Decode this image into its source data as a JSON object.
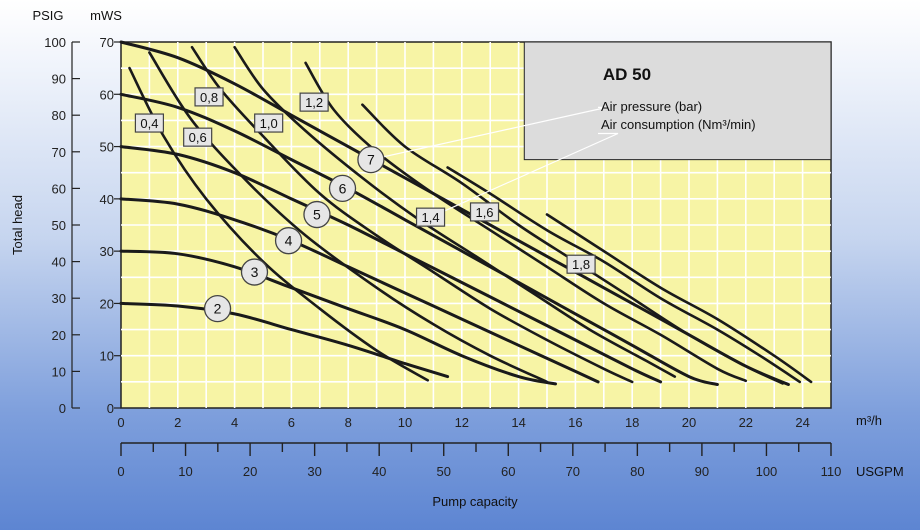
{
  "chart_data": {
    "type": "line",
    "title": "AD 50",
    "legend_lines": [
      "Air pressure (bar)",
      "Air consumption (Nm³/min)"
    ],
    "ylabel": "Total head",
    "xlabel": "Pump capacity",
    "y_unit_psig": "PSIG",
    "y_unit_mws": "mWS",
    "x_unit_m3h": "m³/h",
    "x_unit_usgpm": "USGPM",
    "xlim": [
      0,
      25
    ],
    "ylim": [
      0,
      70
    ],
    "psig_range": [
      0,
      100
    ],
    "usgpm_range": [
      0,
      110
    ],
    "grid": true,
    "xticks_m3h": [
      "0",
      "2",
      "4",
      "6",
      "8",
      "10",
      "12",
      "14",
      "16",
      "18",
      "20",
      "22",
      "24"
    ],
    "xticks_usgpm": [
      "0",
      "10",
      "20",
      "30",
      "40",
      "50",
      "60",
      "70",
      "80",
      "90",
      "100",
      "110"
    ],
    "yticks_mws": [
      "0",
      "10",
      "20",
      "30",
      "40",
      "50",
      "60",
      "70"
    ],
    "yticks_psig": [
      "0",
      "10",
      "20",
      "30",
      "40",
      "50",
      "60",
      "70",
      "80",
      "90",
      "100"
    ],
    "pressure_series": [
      {
        "name": "2",
        "points": [
          [
            0,
            20
          ],
          [
            2,
            19.5
          ],
          [
            4,
            18
          ],
          [
            6,
            15
          ],
          [
            8,
            12
          ],
          [
            10,
            8.5
          ],
          [
            11.5,
            6
          ]
        ]
      },
      {
        "name": "3",
        "points": [
          [
            0,
            30
          ],
          [
            2,
            29.5
          ],
          [
            4,
            27
          ],
          [
            6,
            23
          ],
          [
            8,
            19
          ],
          [
            10,
            15
          ],
          [
            12,
            10
          ],
          [
            14,
            6
          ],
          [
            15.3,
            4.6
          ]
        ]
      },
      {
        "name": "4",
        "points": [
          [
            0,
            40
          ],
          [
            2,
            39
          ],
          [
            4,
            36
          ],
          [
            6,
            32
          ],
          [
            8,
            27
          ],
          [
            10,
            22
          ],
          [
            12,
            17
          ],
          [
            14,
            12
          ],
          [
            16,
            7
          ],
          [
            16.8,
            5
          ]
        ]
      },
      {
        "name": "5",
        "points": [
          [
            0,
            50
          ],
          [
            2,
            48.5
          ],
          [
            4,
            45
          ],
          [
            6,
            40
          ],
          [
            8,
            35
          ],
          [
            10,
            29.5
          ],
          [
            12,
            24
          ],
          [
            14,
            18.5
          ],
          [
            16,
            13
          ],
          [
            18,
            7.5
          ],
          [
            19,
            5
          ]
        ]
      },
      {
        "name": "6",
        "points": [
          [
            0,
            60
          ],
          [
            2,
            57.5
          ],
          [
            4,
            53
          ],
          [
            6,
            47.5
          ],
          [
            8,
            42
          ],
          [
            10,
            36
          ],
          [
            12,
            30
          ],
          [
            14,
            24
          ],
          [
            16,
            18
          ],
          [
            18,
            12
          ],
          [
            20,
            6
          ],
          [
            21,
            4.5
          ]
        ]
      },
      {
        "name": "7",
        "points": [
          [
            0,
            70
          ],
          [
            2,
            67
          ],
          [
            4,
            62
          ],
          [
            6,
            56
          ],
          [
            8,
            50
          ],
          [
            10,
            44
          ],
          [
            12,
            38
          ],
          [
            14,
            32
          ],
          [
            16,
            26
          ],
          [
            18,
            20
          ],
          [
            20,
            14
          ],
          [
            22,
            8
          ],
          [
            23.5,
            4.5
          ]
        ]
      }
    ],
    "air_series": [
      {
        "name": "0,4",
        "points": [
          [
            0.3,
            65
          ],
          [
            1.5,
            52
          ],
          [
            3,
            40
          ],
          [
            5,
            28
          ],
          [
            7,
            19
          ],
          [
            9,
            11
          ],
          [
            10.8,
            5.3
          ]
        ]
      },
      {
        "name": "0,6",
        "points": [
          [
            1,
            68
          ],
          [
            2.5,
            55
          ],
          [
            4.5,
            43
          ],
          [
            6.5,
            33
          ],
          [
            9,
            23
          ],
          [
            11,
            16
          ],
          [
            13,
            10
          ],
          [
            15,
            5
          ]
        ]
      },
      {
        "name": "0,8",
        "points": [
          [
            2.5,
            69
          ],
          [
            3.5,
            61
          ],
          [
            5,
            52
          ],
          [
            7,
            41
          ],
          [
            9,
            33
          ],
          [
            11,
            26
          ],
          [
            13,
            19
          ],
          [
            15,
            13
          ],
          [
            17,
            7.5
          ],
          [
            18,
            5
          ]
        ]
      },
      {
        "name": "1,0",
        "points": [
          [
            4,
            69
          ],
          [
            5,
            61
          ],
          [
            6.5,
            53
          ],
          [
            8.5,
            44
          ],
          [
            10.5,
            36
          ],
          [
            12.5,
            29
          ],
          [
            14.5,
            22
          ],
          [
            16.5,
            15
          ],
          [
            18.5,
            9
          ],
          [
            19.5,
            6
          ]
        ]
      },
      {
        "name": "1,2",
        "points": [
          [
            6.5,
            66
          ],
          [
            7.5,
            57
          ],
          [
            9,
            49
          ],
          [
            11,
            41
          ],
          [
            13,
            34
          ],
          [
            15,
            27
          ],
          [
            17,
            20
          ],
          [
            19,
            14
          ],
          [
            21,
            7.5
          ],
          [
            22,
            5.2
          ]
        ]
      },
      {
        "name": "1,4",
        "points": [
          [
            8.5,
            58
          ],
          [
            10,
            50
          ],
          [
            12,
            43
          ],
          [
            14,
            35
          ],
          [
            16,
            28
          ],
          [
            18,
            21
          ],
          [
            20,
            14
          ],
          [
            22,
            8
          ],
          [
            23.3,
            4.7
          ]
        ]
      },
      {
        "name": "1,6",
        "points": [
          [
            11.5,
            46
          ],
          [
            13,
            41
          ],
          [
            15,
            34
          ],
          [
            17,
            28
          ],
          [
            19,
            21
          ],
          [
            21,
            15
          ],
          [
            22.5,
            10
          ],
          [
            23.9,
            5
          ]
        ]
      },
      {
        "name": "1,8",
        "points": [
          [
            15,
            37
          ],
          [
            17,
            30
          ],
          [
            19,
            23
          ],
          [
            21,
            17
          ],
          [
            23,
            10
          ],
          [
            24.3,
            5
          ]
        ]
      }
    ],
    "circle_labels": [
      {
        "text": "7",
        "x": 8.8,
        "y": 47.5
      },
      {
        "text": "6",
        "x": 7.8,
        "y": 42
      },
      {
        "text": "5",
        "x": 6.9,
        "y": 37
      },
      {
        "text": "4",
        "x": 5.9,
        "y": 32
      },
      {
        "text": "3",
        "x": 4.7,
        "y": 26
      },
      {
        "text": "2",
        "x": 3.4,
        "y": 19
      }
    ],
    "box_labels": [
      {
        "text": "0,4",
        "x": 1.0,
        "y": 54.5
      },
      {
        "text": "0,6",
        "x": 2.7,
        "y": 51.8
      },
      {
        "text": "0,8",
        "x": 3.1,
        "y": 59.5
      },
      {
        "text": "1,0",
        "x": 5.2,
        "y": 54.5
      },
      {
        "text": "1,2",
        "x": 6.8,
        "y": 58.5
      },
      {
        "text": "1,4",
        "x": 10.9,
        "y": 36.5
      },
      {
        "text": "1,6",
        "x": 12.8,
        "y": 37.5
      },
      {
        "text": "1,8",
        "x": 16.2,
        "y": 27.5
      }
    ],
    "legend_pointer_targets": [
      {
        "x": 8.8,
        "y": 47.5
      },
      {
        "x": 10.9,
        "y": 36.5
      }
    ]
  }
}
